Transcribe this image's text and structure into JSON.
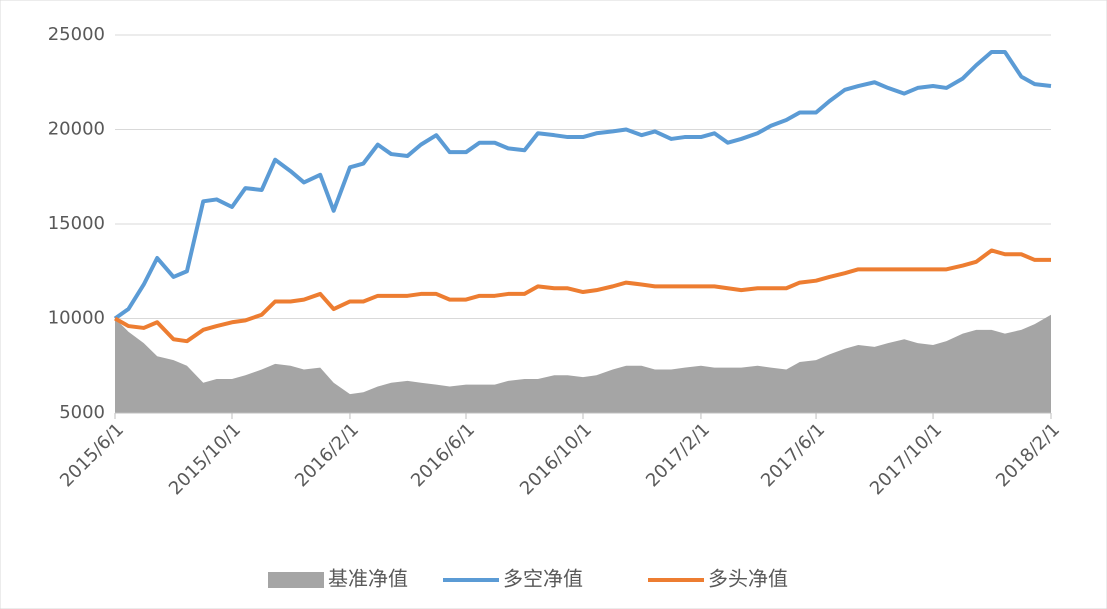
{
  "chart_data": {
    "type": "line",
    "x": [
      "2015/6/1",
      "2015/6/15",
      "2015/7/1",
      "2015/7/15",
      "2015/8/1",
      "2015/8/15",
      "2015/9/1",
      "2015/9/15",
      "2015/10/1",
      "2015/10/15",
      "2015/11/1",
      "2015/11/15",
      "2015/12/1",
      "2015/12/15",
      "2016/1/1",
      "2016/1/15",
      "2016/2/1",
      "2016/2/15",
      "2016/3/1",
      "2016/3/15",
      "2016/4/1",
      "2016/4/15",
      "2016/5/1",
      "2016/5/15",
      "2016/6/1",
      "2016/6/15",
      "2016/7/1",
      "2016/7/15",
      "2016/8/1",
      "2016/8/15",
      "2016/9/1",
      "2016/9/15",
      "2016/10/1",
      "2016/10/15",
      "2016/11/1",
      "2016/11/15",
      "2016/12/1",
      "2016/12/15",
      "2017/1/1",
      "2017/1/15",
      "2017/2/1",
      "2017/2/15",
      "2017/3/1",
      "2017/3/15",
      "2017/4/1",
      "2017/4/15",
      "2017/5/1",
      "2017/5/15",
      "2017/6/1",
      "2017/6/15",
      "2017/7/1",
      "2017/7/15",
      "2017/8/1",
      "2017/8/15",
      "2017/9/1",
      "2017/9/15",
      "2017/10/1",
      "2017/10/15",
      "2017/11/1",
      "2017/11/15",
      "2017/12/1",
      "2017/12/15",
      "2018/1/1",
      "2018/1/15",
      "2018/2/1"
    ],
    "series": [
      {
        "name": "基准净值",
        "color": "#a5a5a5",
        "style": "area",
        "values": [
          10000,
          9300,
          8700,
          8000,
          7800,
          7500,
          6600,
          6800,
          6800,
          7000,
          7300,
          7600,
          7500,
          7300,
          7400,
          6600,
          6000,
          6100,
          6400,
          6600,
          6700,
          6600,
          6500,
          6400,
          6500,
          6500,
          6500,
          6700,
          6800,
          6800,
          7000,
          7000,
          6900,
          7000,
          7300,
          7500,
          7500,
          7300,
          7300,
          7400,
          7500,
          7400,
          7400,
          7400,
          7500,
          7400,
          7300,
          7700,
          7800,
          8100,
          8400,
          8600,
          8500,
          8700,
          8900,
          8700,
          8600,
          8800,
          9200,
          9400,
          9400,
          9200,
          9400,
          9700,
          10200
        ]
      },
      {
        "name": "多空净值",
        "color": "#5b9bd5",
        "style": "line",
        "values": [
          10000,
          10500,
          11800,
          13200,
          12200,
          12500,
          16200,
          16300,
          15900,
          16900,
          16800,
          18400,
          17800,
          17200,
          17600,
          15700,
          18000,
          18200,
          19200,
          18700,
          18600,
          19200,
          19700,
          18800,
          18800,
          19300,
          19300,
          19000,
          18900,
          19800,
          19700,
          19600,
          19600,
          19800,
          19900,
          20000,
          19700,
          19900,
          19500,
          19600,
          19600,
          19800,
          19300,
          19500,
          19800,
          20200,
          20500,
          20900,
          20900,
          21500,
          22100,
          22300,
          22500,
          22200,
          21900,
          22200,
          22300,
          22200,
          22700,
          23400,
          24100,
          24100,
          22800,
          22400,
          22300
        ]
      },
      {
        "name": "多头净值",
        "color": "#ed7d31",
        "style": "line",
        "values": [
          10000,
          9600,
          9500,
          9800,
          8900,
          8800,
          9400,
          9600,
          9800,
          9900,
          10200,
          10900,
          10900,
          11000,
          11300,
          10500,
          10900,
          10900,
          11200,
          11200,
          11200,
          11300,
          11300,
          11000,
          11000,
          11200,
          11200,
          11300,
          11300,
          11700,
          11600,
          11600,
          11400,
          11500,
          11700,
          11900,
          11800,
          11700,
          11700,
          11700,
          11700,
          11700,
          11600,
          11500,
          11600,
          11600,
          11600,
          11900,
          12000,
          12200,
          12400,
          12600,
          12600,
          12600,
          12600,
          12600,
          12600,
          12600,
          12800,
          13000,
          13600,
          13400,
          13400,
          13100,
          13100
        ]
      }
    ],
    "xlim": [
      "2015/6/1",
      "2018/2/1"
    ],
    "xticks": [
      "2015/6/1",
      "2015/10/1",
      "2016/2/1",
      "2016/6/1",
      "2016/10/1",
      "2017/2/1",
      "2017/6/1",
      "2017/10/1",
      "2018/2/1"
    ],
    "ylim": [
      5000,
      25000
    ],
    "yticks": [
      5000,
      10000,
      15000,
      20000,
      25000
    ],
    "grid": true,
    "legend": "bottom"
  }
}
